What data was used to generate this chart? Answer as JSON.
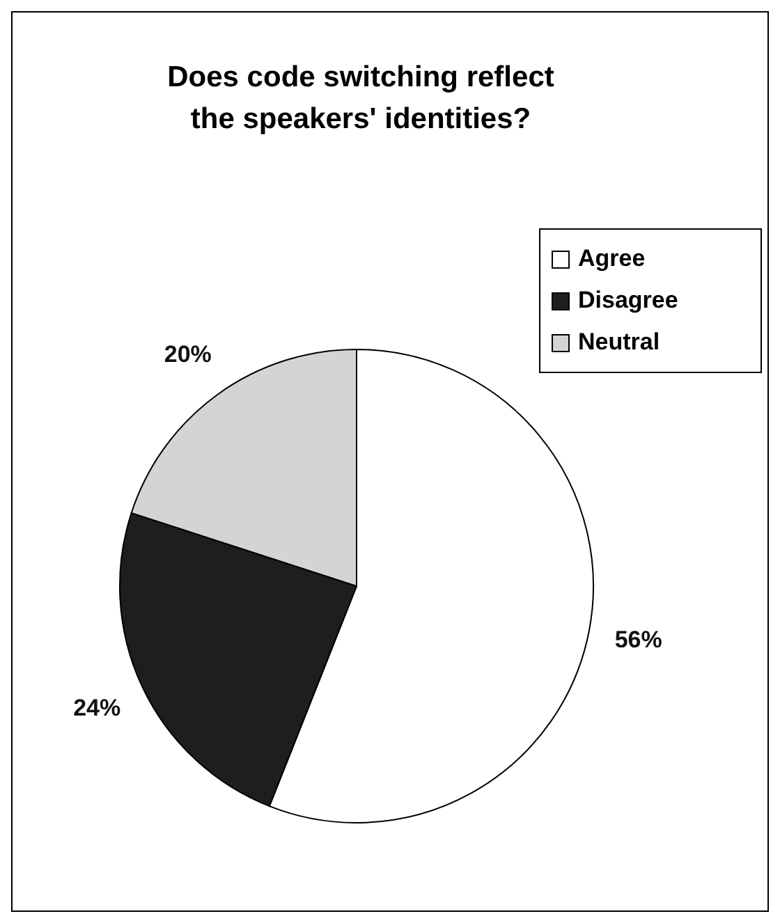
{
  "chart_data": {
    "type": "pie",
    "title": "Does code switching reflect the speakers' identities?",
    "categories": [
      "Agree",
      "Disagree",
      "Neutral"
    ],
    "values": [
      56,
      24,
      20
    ],
    "value_labels": [
      "56%",
      "24%",
      "20%"
    ],
    "colors": [
      "#ffffff",
      "#1e1e1e",
      "#d4d4d4"
    ],
    "legend": "top right"
  }
}
